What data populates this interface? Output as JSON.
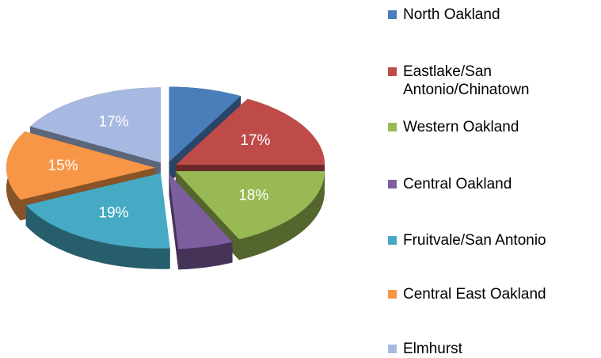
{
  "chart_data": {
    "type": "pie3d",
    "categories": [
      "North Oakland",
      "Eastlake/San Antonio/Chinatown",
      "Western Oakland",
      "Central Oakland",
      "Fruitvale/San Antonio",
      "Central East Oakland",
      "Elmhurst"
    ],
    "values": [
      8,
      17,
      18,
      6,
      19,
      15,
      17
    ],
    "value_labels": [
      null,
      "17%",
      "18%",
      null,
      "19%",
      "15%",
      "17%"
    ],
    "colors": [
      "#4a7ebb",
      "#be4b48",
      "#98b954",
      "#7d5fa0",
      "#46aac5",
      "#f79646",
      "#a7b9e0"
    ],
    "legend": "right"
  }
}
